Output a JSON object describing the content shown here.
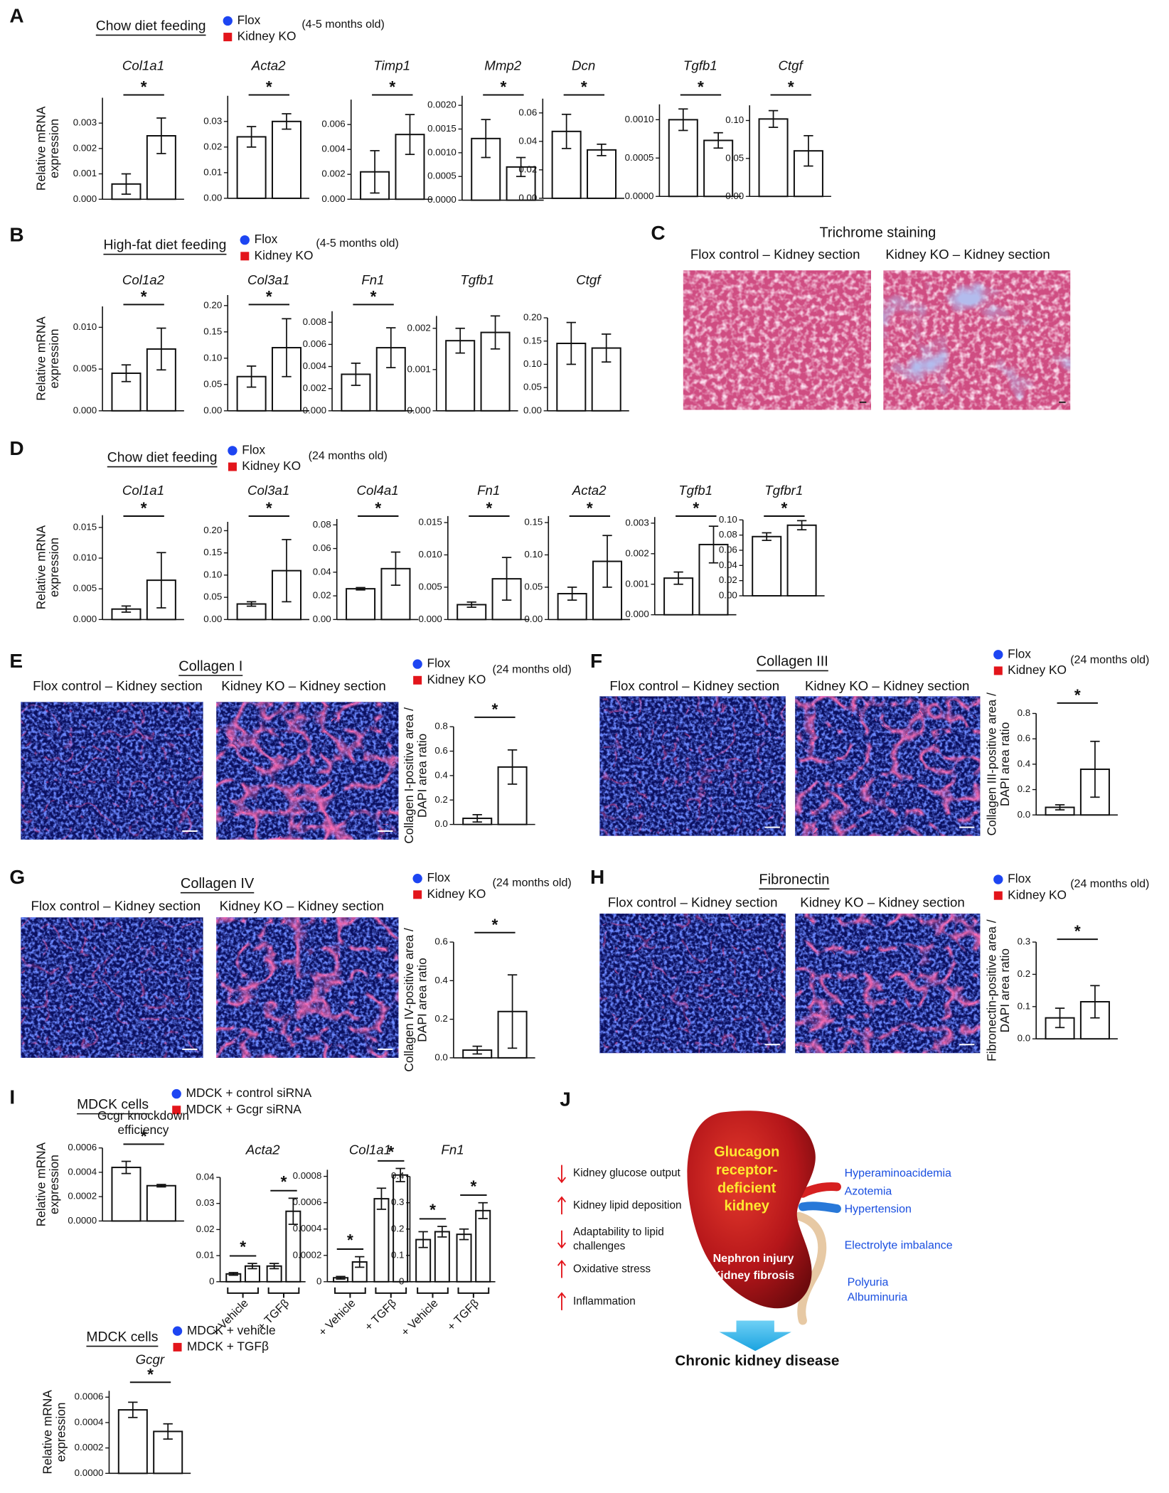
{
  "panels": [
    "A",
    "B",
    "C",
    "D",
    "E",
    "F",
    "G",
    "H",
    "I",
    "J"
  ],
  "legends": [
    {
      "heading": "Chow diet feeding",
      "items": [
        {
          "name": "Flox",
          "color": "#1d45f2",
          "marker": "circle"
        },
        {
          "name": "Kidney KO",
          "color": "#e3151b",
          "marker": "square"
        }
      ],
      "note": "(4-5 months old)"
    },
    {
      "heading": "High-fat diet feeding",
      "items": [
        {
          "name": "Flox",
          "color": "#1d45f2",
          "marker": "circle"
        },
        {
          "name": "Kidney KO",
          "color": "#e3151b",
          "marker": "square"
        }
      ],
      "note": "(4-5 months old)"
    },
    {
      "heading": "Chow diet feeding",
      "items": [
        {
          "name": "Flox",
          "color": "#1d45f2",
          "marker": "circle"
        },
        {
          "name": "Kidney KO",
          "color": "#e3151b",
          "marker": "square"
        }
      ],
      "note": "(24 months old)"
    },
    {
      "items": [
        {
          "name": "Flox",
          "color": "#1d45f2",
          "marker": "circle"
        },
        {
          "name": "Kidney KO",
          "color": "#e3151b",
          "marker": "square"
        }
      ],
      "note": "(24 months old)"
    },
    {
      "items": [
        {
          "name": "Flox",
          "color": "#1d45f2",
          "marker": "circle"
        },
        {
          "name": "Kidney KO",
          "color": "#e3151b",
          "marker": "square"
        }
      ],
      "note": "(24 months old)"
    },
    {
      "items": [
        {
          "name": "Flox",
          "color": "#1d45f2",
          "marker": "circle"
        },
        {
          "name": "Kidney KO",
          "color": "#e3151b",
          "marker": "square"
        }
      ],
      "note": "(24 months old)"
    },
    {
      "items": [
        {
          "name": "Flox",
          "color": "#1d45f2",
          "marker": "circle"
        },
        {
          "name": "Kidney KO",
          "color": "#e3151b",
          "marker": "square"
        }
      ],
      "note": "(24 months old)"
    },
    {
      "heading": "MDCK cells",
      "items": [
        {
          "name": "MDCK + control siRNA",
          "color": "#1d45f2",
          "marker": "circle"
        },
        {
          "name": "MDCK + Gcgr siRNA",
          "color": "#e3151b",
          "marker": "square"
        }
      ]
    },
    {
      "heading": "MDCK cells",
      "items": [
        {
          "name": "MDCK + vehicle",
          "color": "#1d45f2",
          "marker": "circle"
        },
        {
          "name": "MDCK + TGFβ",
          "color": "#e3151b",
          "marker": "square"
        }
      ]
    }
  ],
  "image_panels": [
    {
      "heading": "Trichrome staining",
      "captions": [
        "Flox control – Kidney section",
        "Kidney KO – Kidney section"
      ]
    },
    {
      "heading": "Collagen I",
      "captions": [
        "Flox control – Kidney section",
        "Kidney KO – Kidney section"
      ]
    },
    {
      "heading": "Collagen III",
      "captions": [
        "Flox control – Kidney section",
        "Kidney KO – Kidney section"
      ]
    },
    {
      "heading": "Collagen IV",
      "captions": [
        "Flox control – Kidney section",
        "Kidney KO – Kidney section"
      ]
    },
    {
      "heading": "Fibronectin",
      "captions": [
        "Flox control – Kidney section",
        "Kidney KO – Kidney section"
      ]
    }
  ],
  "chart_data": [
    {
      "type": "bar",
      "title": "Col1a1",
      "ylabel": [
        "Relative mRNA",
        "expression"
      ],
      "ylim": [
        0,
        0.004
      ],
      "yticks": [
        {
          "value": 0,
          "label": "0.000"
        },
        0.001,
        0.002,
        0.003
      ],
      "values": [
        0.0006,
        0.0025
      ],
      "errors": [
        0.0004,
        0.0007
      ],
      "annotation": "*"
    },
    {
      "type": "bar",
      "title": "Acta2",
      "ylim": [
        0,
        0.04
      ],
      "yticks": [
        {
          "value": 0,
          "label": "0.00"
        },
        0.01,
        0.02,
        0.03
      ],
      "values": [
        0.024,
        0.03
      ],
      "errors": [
        0.004,
        0.003
      ],
      "annotation": "*"
    },
    {
      "type": "bar",
      "title": "Timp1",
      "ylim": [
        0,
        0.008
      ],
      "yticks": [
        {
          "value": 0,
          "label": "0.000"
        },
        0.002,
        0.004,
        0.006
      ],
      "values": [
        0.0022,
        0.0052
      ],
      "errors": [
        0.0017,
        0.0016
      ],
      "annotation": "*"
    },
    {
      "type": "bar",
      "title": "Mmp2",
      "ylim": [
        0,
        0.0022
      ],
      "yticks": [
        {
          "value": 0,
          "label": "0.0000"
        },
        0.0005,
        {
          "value": 0.001,
          "label": "0.0010"
        },
        0.0015,
        {
          "value": 0.002,
          "label": "0.0020"
        }
      ],
      "values": [
        0.0013,
        0.0007
      ],
      "errors": [
        0.0004,
        0.0002
      ],
      "annotation": "*"
    },
    {
      "type": "bar",
      "title": "Dcn",
      "ylim": [
        0,
        0.07
      ],
      "yticks": [
        {
          "value": 0,
          "label": "0.00"
        },
        0.02,
        0.04,
        0.06
      ],
      "values": [
        0.047,
        0.034
      ],
      "errors": [
        0.012,
        0.004
      ],
      "annotation": "*"
    },
    {
      "type": "bar",
      "title": "Tgfb1",
      "ylim": [
        0,
        0.0012
      ],
      "yticks": [
        {
          "value": 0,
          "label": "0.0000"
        },
        0.0005,
        {
          "value": 0.001,
          "label": "0.0010"
        }
      ],
      "values": [
        0.001,
        0.00073
      ],
      "errors": [
        0.00014,
        0.0001
      ],
      "annotation": "*"
    },
    {
      "type": "bar",
      "title": "Ctgf",
      "ylim": [
        0,
        0.12
      ],
      "yticks": [
        {
          "value": 0,
          "label": "0.00"
        },
        0.05,
        {
          "value": 0.1,
          "label": "0.10"
        }
      ],
      "values": [
        0.102,
        0.06
      ],
      "errors": [
        0.011,
        0.02
      ],
      "annotation": "*"
    },
    {
      "type": "bar",
      "title": "Col1a2",
      "ylabel": [
        "Relative mRNA",
        "expression"
      ],
      "ylim": [
        0,
        0.0125
      ],
      "yticks": [
        {
          "value": 0,
          "label": "0.000"
        },
        0.005,
        {
          "value": 0.01,
          "label": "0.010"
        }
      ],
      "values": [
        0.0045,
        0.0074
      ],
      "errors": [
        0.001,
        0.0025
      ],
      "annotation": "*"
    },
    {
      "type": "bar",
      "title": "Col3a1",
      "ylim": [
        0,
        0.22
      ],
      "yticks": [
        {
          "value": 0,
          "label": "0.00"
        },
        0.05,
        {
          "value": 0.1,
          "label": "0.10"
        },
        0.15,
        {
          "value": 0.2,
          "label": "0.20"
        }
      ],
      "values": [
        0.065,
        0.12
      ],
      "errors": [
        0.02,
        0.055
      ],
      "annotation": "*"
    },
    {
      "type": "bar",
      "title": "Fn1",
      "ylim": [
        0,
        0.009
      ],
      "yticks": [
        {
          "value": 0,
          "label": "0.000"
        },
        0.002,
        0.004,
        0.006,
        0.008
      ],
      "values": [
        0.0033,
        0.0057
      ],
      "errors": [
        0.001,
        0.0018
      ],
      "annotation": "*"
    },
    {
      "type": "bar",
      "title": "Tgfb1",
      "ylim": [
        0,
        0.0023
      ],
      "yticks": [
        {
          "value": 0,
          "label": "0.000"
        },
        0.001,
        0.002
      ],
      "values": [
        0.0017,
        0.0019
      ],
      "errors": [
        0.0003,
        0.0004
      ]
    },
    {
      "type": "bar",
      "title": "Ctgf",
      "ylim": [
        0,
        0.2
      ],
      "yticks": [
        {
          "value": 0,
          "label": "0.00"
        },
        0.05,
        {
          "value": 0.1,
          "label": "0.10"
        },
        0.15,
        {
          "value": 0.2,
          "label": "0.20"
        }
      ],
      "values": [
        0.145,
        0.135
      ],
      "errors": [
        0.045,
        0.03
      ]
    },
    {
      "type": "bar",
      "title": "Col1a1",
      "ylabel": [
        "Relative mRNA",
        "expression"
      ],
      "ylim": [
        0,
        0.017
      ],
      "yticks": [
        {
          "value": 0,
          "label": "0.000"
        },
        0.005,
        {
          "value": 0.01,
          "label": "0.010"
        },
        0.015
      ],
      "values": [
        0.0017,
        0.0064
      ],
      "errors": [
        0.0005,
        0.0045
      ],
      "annotation": "*"
    },
    {
      "type": "bar",
      "title": "Col3a1",
      "ylim": [
        0,
        0.22
      ],
      "yticks": [
        {
          "value": 0,
          "label": "0.00"
        },
        0.05,
        {
          "value": 0.1,
          "label": "0.10"
        },
        0.15,
        {
          "value": 0.2,
          "label": "0.20"
        }
      ],
      "values": [
        0.035,
        0.11
      ],
      "errors": [
        0.005,
        0.07
      ],
      "annotation": "*"
    },
    {
      "type": "bar",
      "title": "Col4a1",
      "ylim": [
        0,
        0.085
      ],
      "yticks": [
        {
          "value": 0,
          "label": "0.00"
        },
        0.02,
        0.04,
        0.06,
        0.08
      ],
      "values": [
        0.026,
        0.043
      ],
      "errors": [
        0.001,
        0.014
      ],
      "annotation": "*"
    },
    {
      "type": "bar",
      "title": "Fn1",
      "ylim": [
        0,
        0.016
      ],
      "yticks": [
        {
          "value": 0,
          "label": "0.000"
        },
        0.005,
        {
          "value": 0.01,
          "label": "0.010"
        },
        0.015
      ],
      "values": [
        0.0023,
        0.0063
      ],
      "errors": [
        0.0004,
        0.0033
      ],
      "annotation": "*"
    },
    {
      "type": "bar",
      "title": "Acta2",
      "ylim": [
        0,
        0.16
      ],
      "yticks": [
        {
          "value": 0,
          "label": "0.00"
        },
        0.05,
        {
          "value": 0.1,
          "label": "0.10"
        },
        0.15
      ],
      "values": [
        0.04,
        0.09
      ],
      "errors": [
        0.01,
        0.04
      ],
      "annotation": "*"
    },
    {
      "type": "bar",
      "title": "Tgfb1",
      "ylim": [
        0,
        0.0032
      ],
      "yticks": [
        {
          "value": 0,
          "label": "0.000"
        },
        0.001,
        0.002,
        0.003
      ],
      "values": [
        0.0012,
        0.0023
      ],
      "errors": [
        0.0002,
        0.0006
      ],
      "annotation": "*"
    },
    {
      "type": "bar",
      "title": "Tgfbr1",
      "ylim": [
        0,
        0.1
      ],
      "yticks": [
        {
          "value": 0,
          "label": "0.00"
        },
        0.02,
        0.04,
        0.06,
        0.08,
        {
          "value": 0.1,
          "label": "0.10"
        }
      ],
      "values": [
        0.078,
        0.093
      ],
      "errors": [
        0.005,
        0.006
      ],
      "annotation": "*"
    },
    {
      "type": "bar",
      "ylabel": [
        "Collagen I-positive area /",
        "DAPI area ratio"
      ],
      "ylim": [
        0,
        0.8
      ],
      "yticks": [
        {
          "value": 0,
          "label": "0.0"
        },
        0.2,
        0.4,
        0.6,
        0.8
      ],
      "values": [
        0.05,
        0.47
      ],
      "errors": [
        0.03,
        0.14
      ],
      "annotation": "*"
    },
    {
      "type": "bar",
      "ylabel": [
        "Collagen III-positive area /",
        "DAPI area ratio"
      ],
      "ylim": [
        0,
        0.8
      ],
      "yticks": [
        {
          "value": 0,
          "label": "0.0"
        },
        0.2,
        0.4,
        0.6,
        0.8
      ],
      "values": [
        0.06,
        0.36
      ],
      "errors": [
        0.02,
        0.22
      ],
      "annotation": "*"
    },
    {
      "type": "bar",
      "ylabel": [
        "Collagen IV-positive area /",
        "DAPI area ratio"
      ],
      "ylim": [
        0,
        0.6
      ],
      "yticks": [
        {
          "value": 0,
          "label": "0.0"
        },
        0.2,
        0.4,
        0.6
      ],
      "values": [
        0.04,
        0.24
      ],
      "errors": [
        0.02,
        0.19
      ],
      "annotation": "*"
    },
    {
      "type": "bar",
      "ylabel": [
        "Fibronectin-positive area /",
        "DAPI area ratio"
      ],
      "ylim": [
        0,
        0.3
      ],
      "yticks": [
        {
          "value": 0,
          "label": "0.0"
        },
        0.1,
        0.2,
        0.3
      ],
      "values": [
        0.065,
        0.115
      ],
      "errors": [
        0.03,
        0.05
      ],
      "annotation": "*"
    },
    {
      "type": "bar",
      "title": [
        "Gcgr knockdown",
        "efficiency"
      ],
      "ylabel": [
        "Relative mRNA",
        "expression"
      ],
      "ylim": [
        0,
        0.0006
      ],
      "yticks": [
        {
          "value": 0,
          "label": "0.0000"
        },
        0.0002,
        0.0004,
        0.0006
      ],
      "values": [
        0.00044,
        0.00029
      ],
      "errors": [
        5e-05,
        1e-05
      ],
      "annotation": "*"
    },
    {
      "type": "bar",
      "title": "Acta2",
      "ylim": [
        0,
        0.04
      ],
      "yticks": [
        0,
        0.01,
        0.02,
        0.03,
        0.04
      ],
      "values": [
        0.003,
        0.006,
        0.006,
        0.027
      ],
      "errors": [
        0.0005,
        0.001,
        0.001,
        0.005
      ],
      "annotations": [
        "*",
        "*"
      ],
      "groups": [
        "+ Vehicle",
        "+ TGFβ"
      ]
    },
    {
      "type": "bar",
      "title": "Col1a1",
      "ylim": [
        0,
        0.00085
      ],
      "yticks": [
        0,
        0.0002,
        0.0004,
        0.0006,
        0.0008
      ],
      "values": [
        3e-05,
        0.00015,
        0.00063,
        0.00081
      ],
      "errors": [
        1e-05,
        4e-05,
        8e-05,
        5e-05
      ],
      "annotations": [
        "*",
        "*"
      ],
      "groups": [
        "+ Vehicle",
        "+ TGFβ"
      ]
    },
    {
      "type": "bar",
      "title": "Fn1",
      "ylim": [
        0,
        0.4
      ],
      "yticks": [
        0,
        0.1,
        0.2,
        0.3,
        0.4
      ],
      "values": [
        0.16,
        0.19,
        0.18,
        0.27
      ],
      "errors": [
        0.03,
        0.02,
        0.02,
        0.03
      ],
      "annotations": [
        "*",
        "*"
      ],
      "groups": [
        "+ Vehicle",
        "+ TGFβ"
      ]
    },
    {
      "type": "bar",
      "title": "Gcgr",
      "ylabel": [
        "Relative mRNA",
        "expression"
      ],
      "ylim": [
        0,
        0.00065
      ],
      "yticks": [
        {
          "value": 0,
          "label": "0.0000"
        },
        0.0002,
        0.0004,
        0.0006
      ],
      "values": [
        0.0005,
        0.00033
      ],
      "errors": [
        6e-05,
        6e-05
      ],
      "annotation": "*"
    }
  ],
  "diagram": {
    "left": [
      {
        "direction": "down",
        "text": [
          "Kidney glucose output"
        ]
      },
      {
        "direction": "up",
        "text": [
          "Kidney lipid deposition"
        ]
      },
      {
        "direction": "down",
        "text": [
          "Adaptability to lipid",
          "challenges"
        ]
      },
      {
        "direction": "up",
        "text": [
          "Oxidative stress"
        ]
      },
      {
        "direction": "up",
        "text": [
          "Inflammation"
        ]
      }
    ],
    "kidney_label": [
      "Glucagon",
      "receptor-",
      "deficient",
      "kidney"
    ],
    "injury": [
      "Nephron injury",
      "Kidney fibrosis"
    ],
    "effects": [
      "Hyperaminoacidemia",
      "Azotemia",
      "Hypertension",
      "Electrolyte imbalance",
      "Polyuria",
      "Albuminuria"
    ],
    "outcome": "Chronic kidney disease"
  }
}
